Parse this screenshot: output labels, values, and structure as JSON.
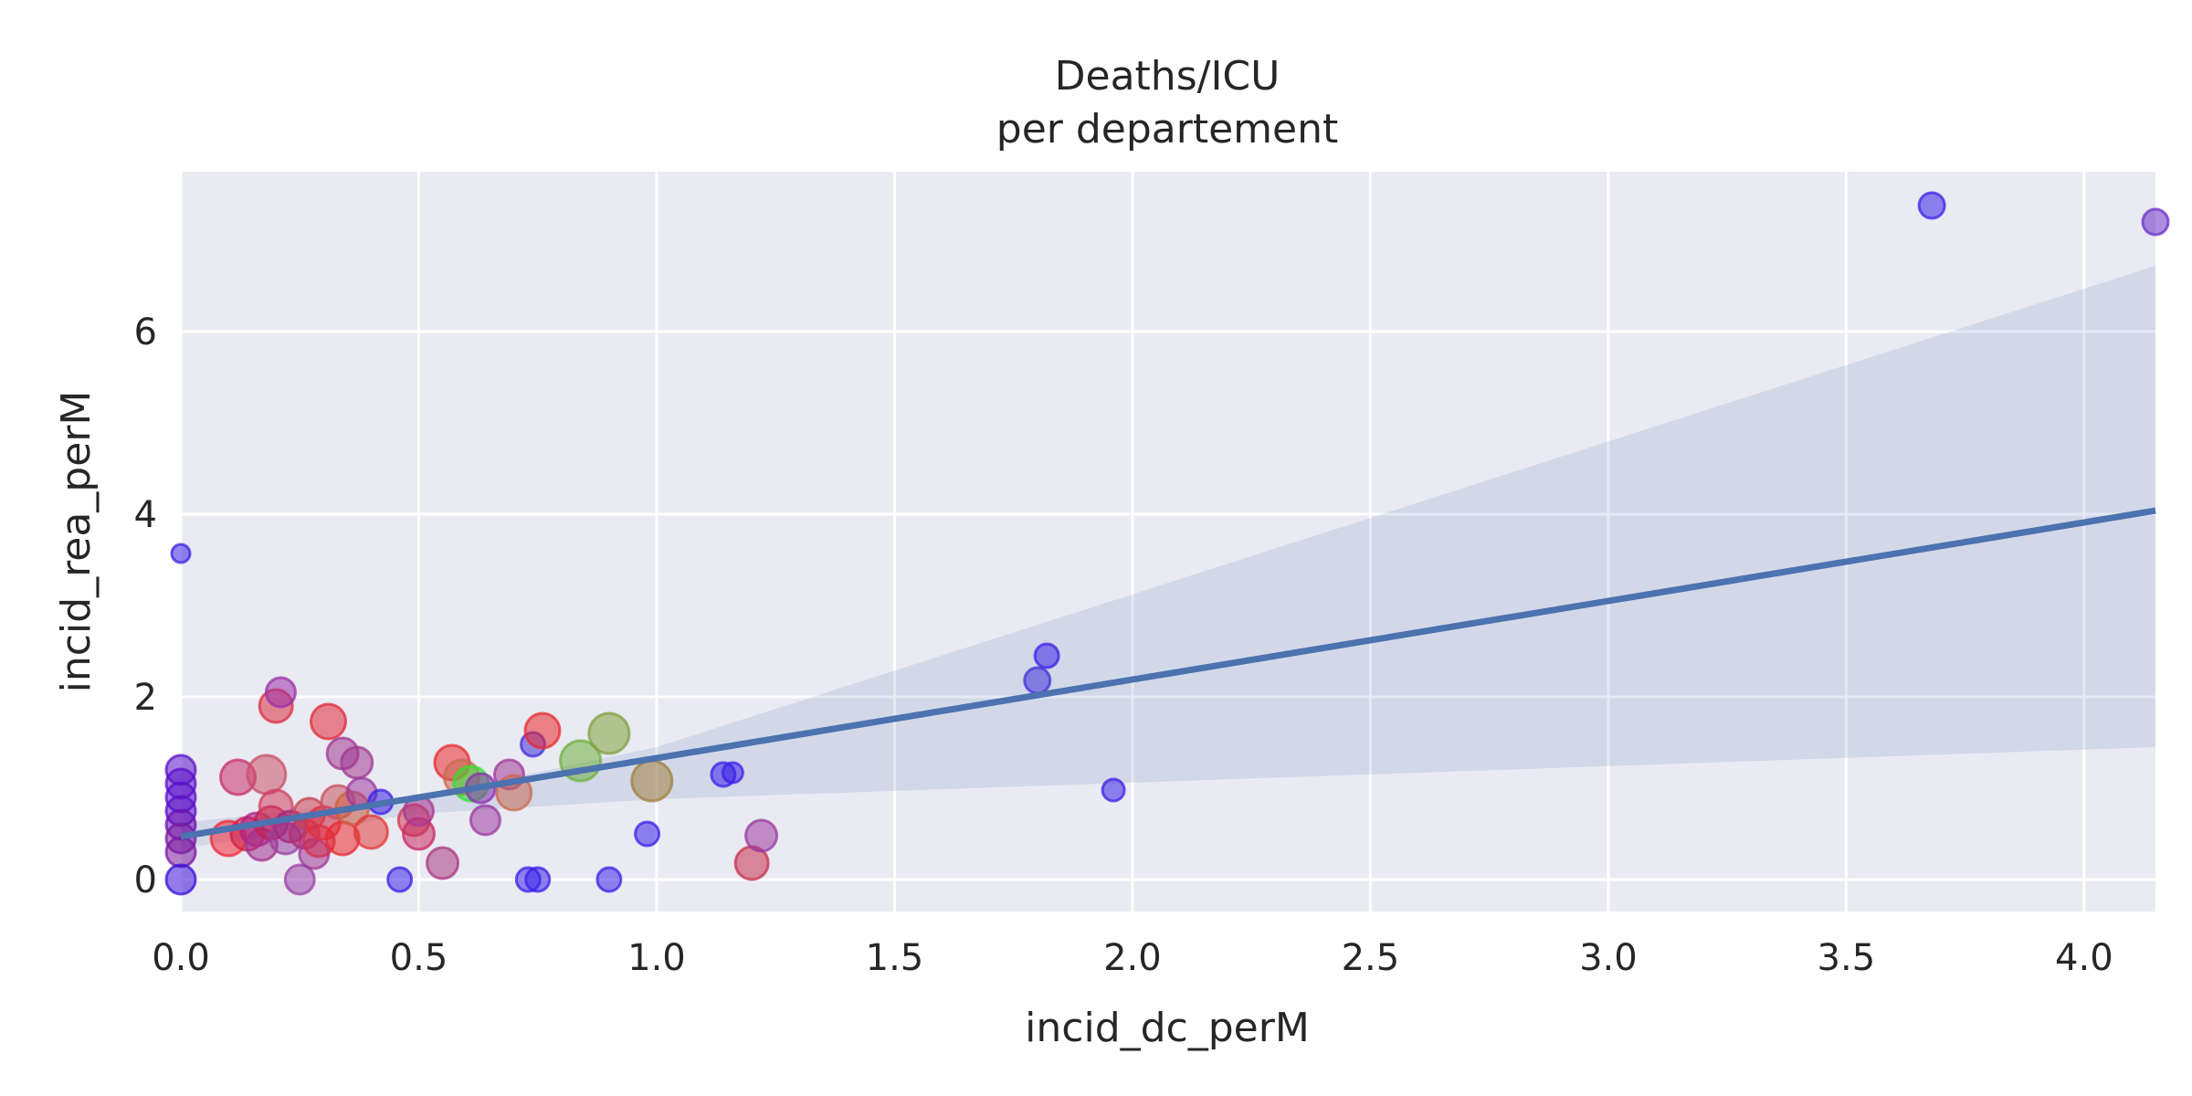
{
  "chart_data": {
    "type": "scatter",
    "title": [
      "Deaths/ICU",
      "per departement"
    ],
    "xlabel": "incid_dc_perM",
    "ylabel": "incid_rea_perM",
    "xlim": [
      0.0,
      4.15
    ],
    "ylim": [
      -0.35,
      7.75
    ],
    "xticks": [
      "0.0",
      "0.5",
      "1.0",
      "1.5",
      "2.0",
      "2.5",
      "3.0",
      "3.5",
      "4.0"
    ],
    "yticks": [
      "0",
      "2",
      "4",
      "6"
    ],
    "grid": true,
    "legend": "none",
    "colors": {
      "background": "#eaeaf2",
      "grid": "#ffffff",
      "regression_line": "#4c72b0",
      "confidence_band": "#4c72b0"
    },
    "regression": {
      "intercept": 0.47,
      "slope": 0.86,
      "ci_upper": [
        [
          0.0,
          0.62
        ],
        [
          0.5,
          0.9
        ],
        [
          1.0,
          1.45
        ],
        [
          4.15,
          6.72
        ]
      ],
      "ci_lower": [
        [
          0.0,
          0.34
        ],
        [
          0.5,
          0.72
        ],
        [
          1.0,
          0.88
        ],
        [
          4.15,
          1.45
        ]
      ]
    },
    "points": [
      {
        "x": 0.0,
        "y": 3.57,
        "size": 10,
        "color": "#3a22e8"
      },
      {
        "x": 0.0,
        "y": 1.2,
        "size": 16,
        "color": "#5a10c8"
      },
      {
        "x": 0.0,
        "y": 1.05,
        "size": 16,
        "color": "#5a10c8"
      },
      {
        "x": 0.0,
        "y": 0.9,
        "size": 16,
        "color": "#5a10c8"
      },
      {
        "x": 0.0,
        "y": 0.75,
        "size": 16,
        "color": "#5a10c8"
      },
      {
        "x": 0.0,
        "y": 0.6,
        "size": 16,
        "color": "#6a10b0"
      },
      {
        "x": 0.0,
        "y": 0.45,
        "size": 16,
        "color": "#7a1aa0"
      },
      {
        "x": 0.0,
        "y": 0.3,
        "size": 16,
        "color": "#7a1aa0"
      },
      {
        "x": 0.0,
        "y": 0.0,
        "size": 16,
        "color": "#3a10d8"
      },
      {
        "x": 0.1,
        "y": 0.45,
        "size": 19,
        "color": "#ee2a3a"
      },
      {
        "x": 0.12,
        "y": 1.12,
        "size": 19,
        "color": "#c8306a"
      },
      {
        "x": 0.14,
        "y": 0.5,
        "size": 18,
        "color": "#d02048"
      },
      {
        "x": 0.16,
        "y": 0.55,
        "size": 18,
        "color": "#b0208a"
      },
      {
        "x": 0.17,
        "y": 0.38,
        "size": 17,
        "color": "#a03090"
      },
      {
        "x": 0.18,
        "y": 1.15,
        "size": 21,
        "color": "#c8506a"
      },
      {
        "x": 0.19,
        "y": 0.62,
        "size": 18,
        "color": "#c02050"
      },
      {
        "x": 0.2,
        "y": 0.8,
        "size": 18,
        "color": "#d04060"
      },
      {
        "x": 0.2,
        "y": 1.9,
        "size": 18,
        "color": "#d83040"
      },
      {
        "x": 0.21,
        "y": 2.05,
        "size": 16,
        "color": "#9a30a8"
      },
      {
        "x": 0.22,
        "y": 0.45,
        "size": 17,
        "color": "#9a40a0"
      },
      {
        "x": 0.23,
        "y": 0.58,
        "size": 17,
        "color": "#a02880"
      },
      {
        "x": 0.25,
        "y": 0.0,
        "size": 16,
        "color": "#9a40a8"
      },
      {
        "x": 0.26,
        "y": 0.5,
        "size": 16,
        "color": "#b03070"
      },
      {
        "x": 0.27,
        "y": 0.72,
        "size": 17,
        "color": "#c84050"
      },
      {
        "x": 0.28,
        "y": 0.28,
        "size": 16,
        "color": "#a03898"
      },
      {
        "x": 0.29,
        "y": 0.42,
        "size": 17,
        "color": "#d03050"
      },
      {
        "x": 0.3,
        "y": 0.62,
        "size": 18,
        "color": "#e03040"
      },
      {
        "x": 0.31,
        "y": 1.73,
        "size": 19,
        "color": "#e02a3a"
      },
      {
        "x": 0.33,
        "y": 0.85,
        "size": 18,
        "color": "#c85060"
      },
      {
        "x": 0.34,
        "y": 0.45,
        "size": 18,
        "color": "#e82a30"
      },
      {
        "x": 0.34,
        "y": 1.38,
        "size": 17,
        "color": "#a03890"
      },
      {
        "x": 0.36,
        "y": 0.78,
        "size": 18,
        "color": "#d06040"
      },
      {
        "x": 0.37,
        "y": 1.28,
        "size": 17,
        "color": "#a03890"
      },
      {
        "x": 0.38,
        "y": 0.95,
        "size": 16,
        "color": "#9a3aa0"
      },
      {
        "x": 0.4,
        "y": 0.52,
        "size": 18,
        "color": "#e03a3a"
      },
      {
        "x": 0.42,
        "y": 0.85,
        "size": 13,
        "color": "#3a22e8"
      },
      {
        "x": 0.46,
        "y": 0.0,
        "size": 13,
        "color": "#3a22e8"
      },
      {
        "x": 0.49,
        "y": 0.65,
        "size": 17,
        "color": "#d03a50"
      },
      {
        "x": 0.5,
        "y": 0.5,
        "size": 17,
        "color": "#c82a60"
      },
      {
        "x": 0.5,
        "y": 0.75,
        "size": 16,
        "color": "#a83890"
      },
      {
        "x": 0.55,
        "y": 0.18,
        "size": 17,
        "color": "#a83880"
      },
      {
        "x": 0.57,
        "y": 1.28,
        "size": 19,
        "color": "#e82a30"
      },
      {
        "x": 0.59,
        "y": 1.12,
        "size": 19,
        "color": "#c86a50"
      },
      {
        "x": 0.61,
        "y": 1.05,
        "size": 19,
        "color": "#30e030"
      },
      {
        "x": 0.63,
        "y": 1.0,
        "size": 16,
        "color": "#8a30b0"
      },
      {
        "x": 0.64,
        "y": 0.65,
        "size": 16,
        "color": "#9a3aa0"
      },
      {
        "x": 0.69,
        "y": 1.15,
        "size": 16,
        "color": "#a03898"
      },
      {
        "x": 0.7,
        "y": 0.95,
        "size": 19,
        "color": "#c86a50"
      },
      {
        "x": 0.73,
        "y": 0.0,
        "size": 13,
        "color": "#3a22e8"
      },
      {
        "x": 0.74,
        "y": 1.48,
        "size": 13,
        "color": "#4030d8"
      },
      {
        "x": 0.75,
        "y": 0.0,
        "size": 13,
        "color": "#3a22e8"
      },
      {
        "x": 0.76,
        "y": 1.63,
        "size": 19,
        "color": "#e82a30"
      },
      {
        "x": 0.84,
        "y": 1.3,
        "size": 22,
        "color": "#70b040"
      },
      {
        "x": 0.9,
        "y": 0.0,
        "size": 13,
        "color": "#3a22e8"
      },
      {
        "x": 0.9,
        "y": 1.6,
        "size": 22,
        "color": "#80a040"
      },
      {
        "x": 0.98,
        "y": 0.5,
        "size": 13,
        "color": "#3a22e8"
      },
      {
        "x": 0.99,
        "y": 1.08,
        "size": 22,
        "color": "#a08040"
      },
      {
        "x": 1.14,
        "y": 1.15,
        "size": 13,
        "color": "#3a22e8"
      },
      {
        "x": 1.16,
        "y": 1.17,
        "size": 11,
        "color": "#3a22e8"
      },
      {
        "x": 1.2,
        "y": 0.18,
        "size": 18,
        "color": "#c83050"
      },
      {
        "x": 1.22,
        "y": 0.48,
        "size": 17,
        "color": "#9a3aa0"
      },
      {
        "x": 1.8,
        "y": 2.18,
        "size": 14,
        "color": "#4030d8"
      },
      {
        "x": 1.82,
        "y": 2.45,
        "size": 13,
        "color": "#3a22e8"
      },
      {
        "x": 1.96,
        "y": 0.98,
        "size": 12,
        "color": "#3a22e8"
      },
      {
        "x": 3.68,
        "y": 7.38,
        "size": 14,
        "color": "#3a22e8"
      },
      {
        "x": 4.15,
        "y": 7.2,
        "size": 14,
        "color": "#6a30c8"
      }
    ]
  }
}
